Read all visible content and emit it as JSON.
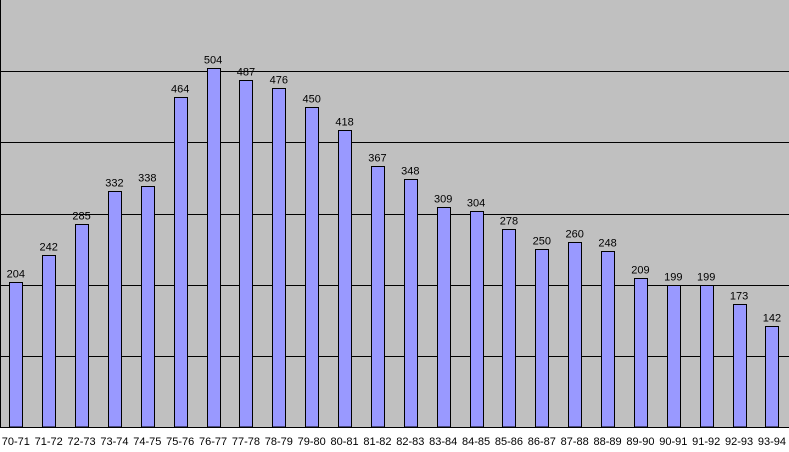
{
  "chart_data": {
    "type": "bar",
    "title": "",
    "xlabel": "",
    "ylabel": "",
    "categories": [
      "70-71",
      "71-72",
      "72-73",
      "73-74",
      "74-75",
      "75-76",
      "76-77",
      "77-78",
      "78-79",
      "79-80",
      "80-81",
      "81-82",
      "82-83",
      "83-84",
      "84-85",
      "85-86",
      "86-87",
      "87-88",
      "88-89",
      "89-90",
      "90-91",
      "91-92",
      "92-93",
      "93-94"
    ],
    "values": [
      204,
      242,
      285,
      332,
      338,
      464,
      504,
      487,
      476,
      450,
      418,
      367,
      348,
      309,
      304,
      278,
      250,
      260,
      248,
      209,
      199,
      199,
      173,
      142
    ],
    "ylim": [
      0,
      600
    ],
    "gridlines": [
      100,
      200,
      300,
      400,
      500
    ],
    "grid": true,
    "legend": "none",
    "colors": {
      "plot_background": "#c0c0c0",
      "bar_fill": "#9999ff",
      "bar_stroke": "#000000",
      "gridline": "#000000",
      "page_background": "#ffffff"
    }
  }
}
